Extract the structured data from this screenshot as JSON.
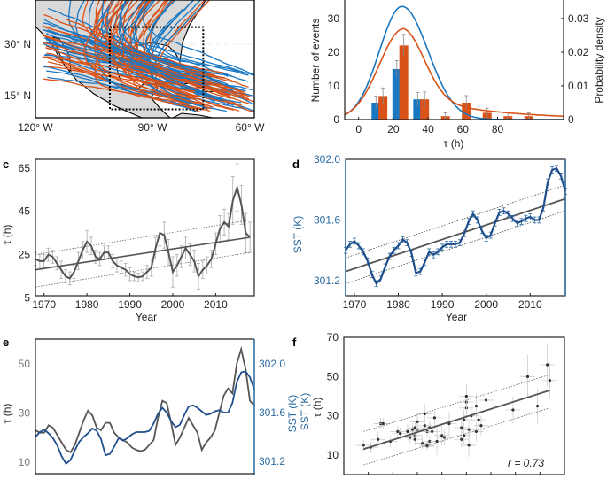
{
  "colors": {
    "blue": "#1a78c2",
    "orange": "#d95319",
    "sst_blue": "#1f4e8c",
    "tau_gray": "#555555",
    "land": "#d9d9d9"
  },
  "panels": {
    "a": {
      "type": "map",
      "lon_ticks": [
        "120° W",
        "90° W",
        "60° W"
      ],
      "lat_ticks": [
        "30° N",
        "15° N"
      ],
      "box_lon": [
        -99.6,
        -74
      ],
      "box_lat": [
        11,
        35
      ]
    },
    "b": {
      "type": "bar",
      "xlabel": "τ (h)",
      "ylabel": "Number of events",
      "ylabel_right": "Probability density",
      "xticks": [
        "0",
        "20",
        "40",
        "60",
        "80"
      ],
      "yticks": [
        "0",
        "10",
        "20",
        "30"
      ],
      "yticks_right": [
        "0",
        "0.01",
        "0.02",
        "0.03"
      ],
      "xlim": [
        -8,
        118
      ],
      "ylim": [
        0,
        35.5
      ],
      "ylim_right": [
        0,
        0.0355
      ],
      "series": [
        {
          "color": "blue",
          "x": [
            10,
            22,
            34
          ],
          "values": [
            5,
            15,
            6
          ],
          "err": [
            2,
            2.5,
            2
          ]
        },
        {
          "color": "orange",
          "x": [
            14,
            26,
            38,
            50,
            62,
            74,
            86,
            98
          ],
          "values": [
            7,
            22,
            6,
            1,
            5,
            2,
            1,
            1
          ],
          "err": [
            2.4,
            3.3,
            2.2,
            1,
            2.1,
            1.4,
            1,
            1
          ]
        }
      ],
      "density": [
        {
          "color": "blue",
          "peak_x": 25,
          "peak": 0.0336
        },
        {
          "color": "orange",
          "peak_x": 26,
          "peak": 0.027
        }
      ]
    },
    "c": {
      "label": "c",
      "type": "line",
      "xlabel": "Year",
      "ylabel": "τ (h)",
      "xticks": [
        "1970",
        "1980",
        "1990",
        "2000",
        "2010"
      ],
      "yticks": [
        "5",
        "25",
        "45",
        "65"
      ],
      "xlim": [
        1968,
        2019
      ],
      "ylim": [
        6,
        69
      ]
    },
    "d": {
      "label": "d",
      "type": "line",
      "xlabel": "Year",
      "ylabel": "SST (K)",
      "xticks": [
        "1970",
        "1980",
        "1990",
        "2000",
        "2010"
      ],
      "yticks": [
        "301.2",
        "301.6",
        "302.0"
      ],
      "xlim": [
        1968,
        2018
      ],
      "ylim": [
        301.1,
        302.0
      ]
    },
    "e": {
      "label": "e",
      "type": "line",
      "ylabel": "τ (h)",
      "ylabel_right": "SST (K)",
      "yticks": [
        "10",
        "30",
        "50"
      ],
      "yticks_right": [
        "301.2",
        "301.6",
        "302.0"
      ],
      "xlim": [
        1968,
        2018
      ],
      "ylim": [
        5,
        60
      ],
      "ylim_right": [
        301.1,
        302.2
      ]
    },
    "f": {
      "label": "f",
      "type": "scatter",
      "ylabel": "τ (h)",
      "xlabel_side": "SST (K)",
      "yticks": [
        "10",
        "30",
        "50",
        "70"
      ],
      "xlim": [
        301.1,
        302.0
      ],
      "ylim": [
        4,
        70
      ],
      "annotation": "r = 0.73"
    }
  },
  "chart_data": {
    "years": [
      1968,
      1969,
      1970,
      1971,
      1972,
      1973,
      1974,
      1975,
      1976,
      1977,
      1978,
      1979,
      1980,
      1981,
      1982,
      1983,
      1984,
      1985,
      1986,
      1987,
      1988,
      1989,
      1990,
      1991,
      1992,
      1993,
      1994,
      1995,
      1996,
      1997,
      1998,
      1999,
      2000,
      2001,
      2002,
      2003,
      2004,
      2005,
      2006,
      2007,
      2008,
      2009,
      2010,
      2011,
      2012,
      2013,
      2014,
      2015,
      2016,
      2017,
      2018
    ],
    "tau": [
      23,
      22,
      22,
      25,
      24,
      21,
      18,
      15,
      14,
      17,
      22,
      27,
      31,
      29,
      24,
      23,
      26,
      26,
      22,
      20,
      19,
      18,
      16,
      15,
      14.5,
      15,
      17,
      19,
      28,
      35,
      34,
      26,
      17,
      20,
      24,
      28,
      25,
      22,
      15,
      18,
      20,
      23,
      30,
      37,
      40,
      38,
      50,
      56,
      48,
      35,
      33
    ],
    "tau_err": [
      3,
      3,
      3,
      3,
      3,
      3,
      4,
      3,
      3,
      3,
      4,
      4,
      5,
      4,
      3,
      3,
      3,
      3,
      3,
      3,
      3,
      3,
      3,
      2,
      2,
      2,
      3,
      4,
      5,
      6,
      6,
      6,
      7,
      5,
      5,
      5,
      5,
      5,
      6,
      4,
      4,
      4,
      5,
      6,
      6,
      6,
      11,
      11,
      9,
      9,
      7
    ],
    "sst": [
      301.4,
      301.44,
      301.46,
      301.43,
      301.39,
      301.33,
      301.24,
      301.18,
      301.21,
      301.29,
      301.36,
      301.4,
      301.43,
      301.47,
      301.45,
      301.38,
      301.25,
      301.26,
      301.32,
      301.39,
      301.37,
      301.39,
      301.42,
      301.44,
      301.44,
      301.44,
      301.45,
      301.51,
      301.59,
      301.64,
      301.6,
      301.53,
      301.48,
      301.5,
      301.58,
      301.65,
      301.66,
      301.64,
      301.61,
      301.58,
      301.59,
      301.61,
      301.62,
      301.6,
      301.6,
      301.68,
      301.85,
      301.93,
      301.94,
      301.89,
      301.79
    ],
    "tau_trend": [
      18,
      33
    ],
    "tau_trend_band_lo": [
      10,
      26
    ],
    "tau_trend_band_hi": [
      25,
      41
    ],
    "sst_trend": [
      301.26,
      301.74
    ],
    "sst_trend_band_lo": [
      301.18,
      301.66
    ],
    "sst_trend_band_hi": [
      301.35,
      301.83
    ],
    "fit_f": [
      13,
      43
    ],
    "fit_f_band_lo": [
      5,
      34
    ],
    "fit_f_band_hi": [
      22,
      51
    ]
  }
}
